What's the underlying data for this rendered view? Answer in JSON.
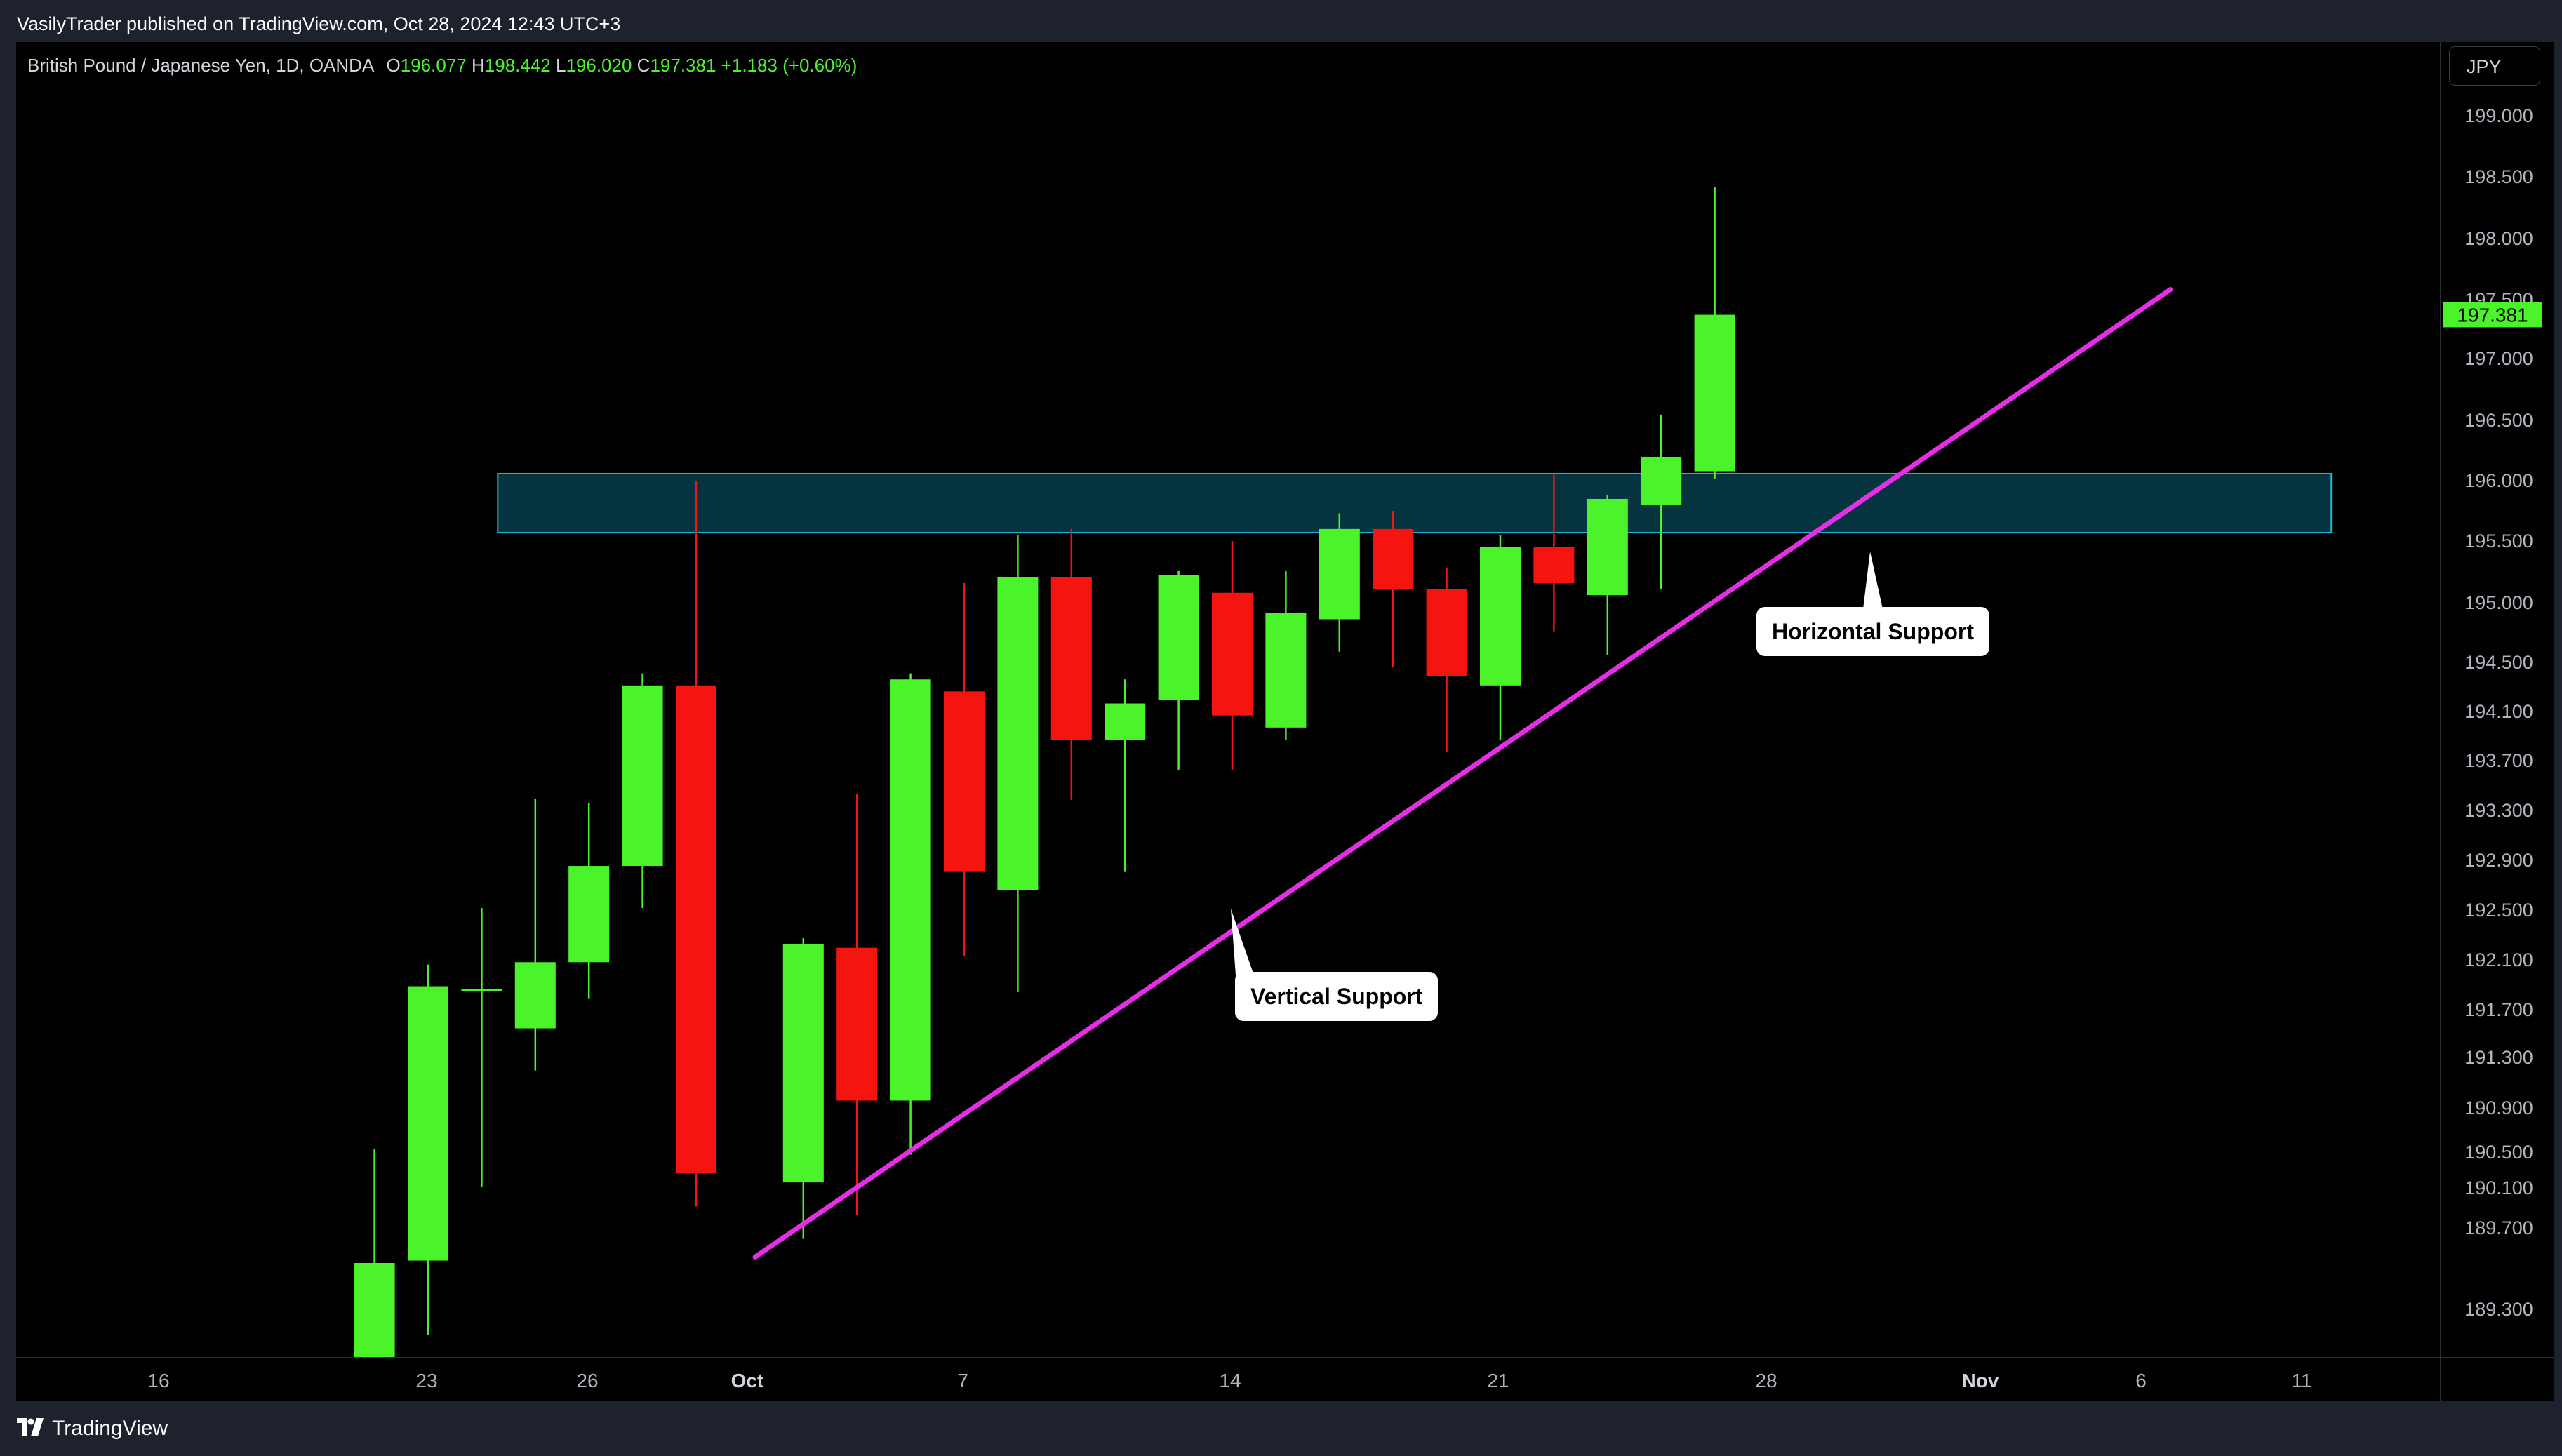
{
  "header": {
    "publisher_text": "VasilyTrader published on TradingView.com, Oct 28, 2024 12:43 UTC+3"
  },
  "legend": {
    "symbol": "British Pound / Japanese Yen, 1D, OANDA",
    "open_label": "O",
    "open": "196.077",
    "high_label": "H",
    "high": "198.442",
    "low_label": "L",
    "low": "196.020",
    "close_label": "C",
    "close": "197.381",
    "change": "+1.183 (+0.60%)"
  },
  "price_axis": {
    "currency": "JPY",
    "last_price": "197.381"
  },
  "footer": {
    "brand": "TradingView"
  },
  "colors": {
    "up": "#4af32a",
    "down": "#f5140f",
    "background": "#000000",
    "trendline": "#e62ee6",
    "zone_fill": "#0a5f75",
    "zone_border": "#1eb5d2"
  },
  "chart_data": {
    "type": "candlestick",
    "x_tick_labels": [
      {
        "label": "16",
        "day": 0
      },
      {
        "label": "23",
        "day": 7
      },
      {
        "label": "26",
        "day": 10
      },
      {
        "label": "Oct",
        "day": 15
      },
      {
        "label": "7",
        "day": 21
      },
      {
        "label": "14",
        "day": 28
      },
      {
        "label": "21",
        "day": 35
      },
      {
        "label": "28",
        "day": 42
      },
      {
        "label": "Nov",
        "day": 46
      },
      {
        "label": "6",
        "day": 51
      },
      {
        "label": "11",
        "day": 56
      }
    ],
    "y_ticks": [
      189.3,
      189.7,
      190.1,
      190.5,
      190.9,
      191.3,
      191.7,
      192.1,
      192.5,
      192.9,
      193.3,
      193.7,
      194.1,
      194.5,
      195.0,
      195.5,
      196.0,
      196.5,
      197.0,
      197.5,
      198.0,
      198.5,
      199.0
    ],
    "y_tick_labels": [
      "189.300",
      "189.700",
      "190.100",
      "190.500",
      "190.900",
      "191.300",
      "191.700",
      "192.100",
      "192.500",
      "192.900",
      "193.300",
      "193.700",
      "194.100",
      "194.500",
      "195.000",
      "195.500",
      "196.000",
      "196.500",
      "197.000",
      "197.500",
      "198.000",
      "198.500",
      "199.000"
    ],
    "candles": [
      {
        "day": 4,
        "open": 188.65,
        "high": 190.45,
        "low": 188.65,
        "close": 189.5
      },
      {
        "day": 5,
        "open": 189.52,
        "high": 191.98,
        "low": 188.9,
        "close": 191.8
      },
      {
        "day": 6,
        "open": 191.78,
        "high": 192.45,
        "low": 190.13,
        "close": 191.78
      },
      {
        "day": 7,
        "open": 191.45,
        "high": 193.36,
        "low": 191.1,
        "close": 192.0
      },
      {
        "day": 8,
        "open": 192.0,
        "high": 193.32,
        "low": 191.7,
        "close": 192.8
      },
      {
        "day": 9,
        "open": 192.8,
        "high": 194.4,
        "low": 192.45,
        "close": 194.3
      },
      {
        "day": 10,
        "open": 194.3,
        "high": 196.0,
        "low": 189.97,
        "close": 190.25
      },
      {
        "day": 12,
        "open": 190.17,
        "high": 192.2,
        "low": 189.7,
        "close": 192.15
      },
      {
        "day": 13,
        "open": 192.12,
        "high": 193.4,
        "low": 189.9,
        "close": 190.85
      },
      {
        "day": 14,
        "open": 190.85,
        "high": 194.4,
        "low": 190.4,
        "close": 194.35
      },
      {
        "day": 15,
        "open": 194.25,
        "high": 195.15,
        "low": 192.05,
        "close": 192.75
      },
      {
        "day": 16,
        "open": 192.6,
        "high": 195.55,
        "low": 191.75,
        "close": 195.2
      },
      {
        "day": 17,
        "open": 195.2,
        "high": 195.6,
        "low": 193.35,
        "close": 193.85
      },
      {
        "day": 18,
        "open": 193.85,
        "high": 194.35,
        "low": 192.75,
        "close": 194.15
      },
      {
        "day": 19,
        "open": 194.18,
        "high": 195.25,
        "low": 193.6,
        "close": 195.22
      },
      {
        "day": 20,
        "open": 195.07,
        "high": 195.5,
        "low": 193.6,
        "close": 194.05
      },
      {
        "day": 21,
        "open": 193.95,
        "high": 195.25,
        "low": 193.85,
        "close": 194.9
      },
      {
        "day": 22,
        "open": 194.85,
        "high": 195.73,
        "low": 194.58,
        "close": 195.6
      },
      {
        "day": 23,
        "open": 195.6,
        "high": 195.75,
        "low": 194.45,
        "close": 195.1
      },
      {
        "day": 24,
        "open": 195.1,
        "high": 195.28,
        "low": 193.75,
        "close": 194.38
      },
      {
        "day": 25,
        "open": 194.3,
        "high": 195.55,
        "low": 193.85,
        "close": 195.45
      },
      {
        "day": 26,
        "open": 195.45,
        "high": 196.05,
        "low": 194.75,
        "close": 195.15
      },
      {
        "day": 27,
        "open": 195.05,
        "high": 195.88,
        "low": 194.55,
        "close": 195.85
      },
      {
        "day": 28,
        "open": 195.8,
        "high": 196.55,
        "low": 195.1,
        "close": 196.2
      },
      {
        "day": 29,
        "open": 196.08,
        "high": 198.44,
        "low": 196.02,
        "close": 197.38
      }
    ],
    "annotations": [
      {
        "type": "zone",
        "label": "Horizontal Support",
        "x_start_day": 6.3,
        "x_end_day": 40.5,
        "y_low": 195.57,
        "y_high": 196.06
      },
      {
        "type": "trendline",
        "label": "Vertical Support",
        "x1_day": 11.1,
        "y1": 189.55,
        "x2_day": 37.5,
        "y2": 197.59
      }
    ]
  }
}
